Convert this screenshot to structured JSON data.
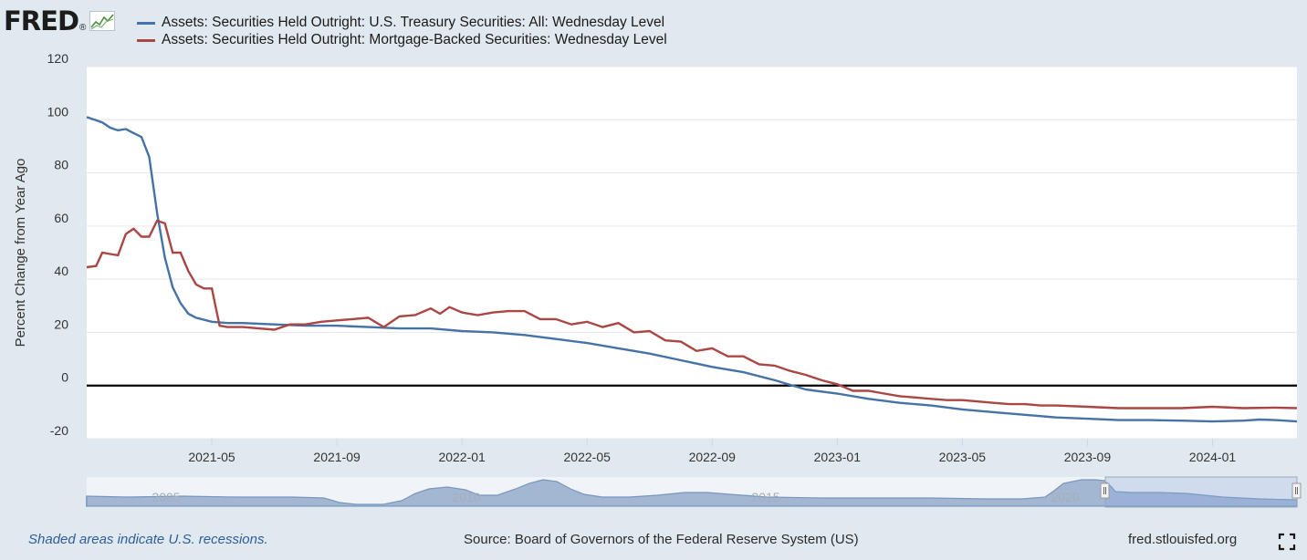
{
  "brand": {
    "logo_text": "FRED",
    "logo_dot": "®"
  },
  "colors": {
    "treasury": "#4572a7",
    "mbs": "#aa4643",
    "zero_line": "#000000",
    "navigator_fill": "#8ba3c7",
    "navigator_line": "#4572a7"
  },
  "legend": [
    {
      "label": "Assets: Securities Held Outright: U.S. Treasury Securities: All: Wednesday Level"
    },
    {
      "label": "Assets: Securities Held Outright: Mortgage-Backed Securities: Wednesday Level"
    }
  ],
  "footer": {
    "recession_note": "Shaded areas indicate U.S. recessions.",
    "source": "Source: Board of Governors of the Federal Reserve System (US)",
    "site": "fred.stlouisfed.org"
  },
  "navigator": {
    "year_labels": [
      "2005",
      "2010",
      "2015",
      "2020"
    ]
  },
  "chart_data": {
    "type": "line",
    "title": "",
    "xlabel": "",
    "ylabel": "Percent Change from Year Ago",
    "ylim": [
      -20,
      120
    ],
    "yticks": [
      "120",
      "100",
      "80",
      "60",
      "40",
      "20",
      "0",
      "-20"
    ],
    "x_start": "2021-01-06",
    "x_end": "2024-03-27",
    "x_tick_labels": [
      "2021-05",
      "2021-09",
      "2022-01",
      "2022-05",
      "2022-09",
      "2023-01",
      "2023-05",
      "2023-09",
      "2024-01"
    ],
    "x_tick_months": [
      4,
      8,
      12,
      16,
      20,
      24,
      28,
      32,
      36
    ],
    "series": [
      {
        "name": "Assets: Securities Held Outright: U.S. Treasury Securities: All: Wednesday Level",
        "points": [
          [
            0,
            101
          ],
          [
            0.25,
            100
          ],
          [
            0.5,
            99
          ],
          [
            0.75,
            97
          ],
          [
            1,
            96
          ],
          [
            1.25,
            96.5
          ],
          [
            1.5,
            95
          ],
          [
            1.75,
            93.5
          ],
          [
            2.0,
            86
          ],
          [
            2.25,
            65
          ],
          [
            2.5,
            48
          ],
          [
            2.75,
            37
          ],
          [
            3,
            31
          ],
          [
            3.25,
            27
          ],
          [
            3.5,
            25.5
          ],
          [
            4,
            24
          ],
          [
            4.5,
            23.5
          ],
          [
            5,
            23.5
          ],
          [
            6,
            23
          ],
          [
            7,
            22.5
          ],
          [
            8,
            22.5
          ],
          [
            9,
            22
          ],
          [
            10,
            21.5
          ],
          [
            11,
            21.5
          ],
          [
            12,
            20.5
          ],
          [
            13,
            20
          ],
          [
            14,
            19
          ],
          [
            15,
            17.5
          ],
          [
            16,
            16
          ],
          [
            17,
            14
          ],
          [
            18,
            12
          ],
          [
            19,
            9.5
          ],
          [
            20,
            7
          ],
          [
            21,
            5
          ],
          [
            22,
            2
          ],
          [
            23,
            -1.5
          ],
          [
            24,
            -3
          ],
          [
            25,
            -5
          ],
          [
            26,
            -6.5
          ],
          [
            27,
            -7.5
          ],
          [
            28,
            -9
          ],
          [
            29,
            -10
          ],
          [
            30,
            -11
          ],
          [
            31,
            -12
          ],
          [
            32,
            -12.5
          ],
          [
            33,
            -13
          ],
          [
            34,
            -13
          ],
          [
            35,
            -13.2
          ],
          [
            36,
            -13.5
          ],
          [
            37,
            -13.2
          ],
          [
            37.5,
            -12.8
          ],
          [
            38,
            -13
          ],
          [
            38.7,
            -13.5
          ]
        ]
      },
      {
        "name": "Assets: Securities Held Outright: Mortgage-Backed Securities: Wednesday Level",
        "points": [
          [
            0,
            44.5
          ],
          [
            0.3,
            45
          ],
          [
            0.5,
            50
          ],
          [
            0.75,
            49.5
          ],
          [
            1,
            49
          ],
          [
            1.25,
            57
          ],
          [
            1.5,
            59
          ],
          [
            1.75,
            56
          ],
          [
            2,
            56
          ],
          [
            2.25,
            62
          ],
          [
            2.5,
            61
          ],
          [
            2.75,
            50
          ],
          [
            3,
            50
          ],
          [
            3.25,
            43
          ],
          [
            3.5,
            38
          ],
          [
            3.75,
            36.5
          ],
          [
            4,
            36.5
          ],
          [
            4.25,
            22.5
          ],
          [
            4.5,
            22
          ],
          [
            5,
            22
          ],
          [
            5.5,
            21.5
          ],
          [
            6,
            21
          ],
          [
            6.5,
            23
          ],
          [
            7,
            23
          ],
          [
            7.5,
            24
          ],
          [
            8,
            24.5
          ],
          [
            8.5,
            25
          ],
          [
            9,
            25.5
          ],
          [
            9.5,
            22
          ],
          [
            10,
            26
          ],
          [
            10.5,
            26.5
          ],
          [
            11,
            29
          ],
          [
            11.3,
            27
          ],
          [
            11.6,
            29.5
          ],
          [
            12,
            27.5
          ],
          [
            12.5,
            26.5
          ],
          [
            13,
            27.5
          ],
          [
            13.5,
            28
          ],
          [
            14,
            28
          ],
          [
            14.5,
            25
          ],
          [
            15,
            25
          ],
          [
            15.5,
            23
          ],
          [
            16,
            24
          ],
          [
            16.5,
            22
          ],
          [
            17,
            23.5
          ],
          [
            17.5,
            20
          ],
          [
            18,
            20.5
          ],
          [
            18.5,
            17
          ],
          [
            19,
            16.5
          ],
          [
            19.5,
            13
          ],
          [
            20,
            14
          ],
          [
            20.5,
            11
          ],
          [
            21,
            11
          ],
          [
            21.5,
            8
          ],
          [
            22,
            7.5
          ],
          [
            22.5,
            5.5
          ],
          [
            23,
            4
          ],
          [
            23.5,
            2
          ],
          [
            24,
            0.5
          ],
          [
            24.5,
            -2
          ],
          [
            25,
            -2
          ],
          [
            25.5,
            -3
          ],
          [
            26,
            -4
          ],
          [
            26.5,
            -4.5
          ],
          [
            27,
            -5
          ],
          [
            27.5,
            -5.5
          ],
          [
            28,
            -5.5
          ],
          [
            28.5,
            -6
          ],
          [
            29,
            -6.5
          ],
          [
            29.5,
            -7
          ],
          [
            30,
            -7
          ],
          [
            30.5,
            -7.5
          ],
          [
            31,
            -7.5
          ],
          [
            32,
            -8
          ],
          [
            33,
            -8.5
          ],
          [
            34,
            -8.5
          ],
          [
            35,
            -8.5
          ],
          [
            36,
            -8
          ],
          [
            37,
            -8.5
          ],
          [
            38,
            -8.3
          ],
          [
            38.7,
            -8.5
          ]
        ]
      }
    ]
  }
}
